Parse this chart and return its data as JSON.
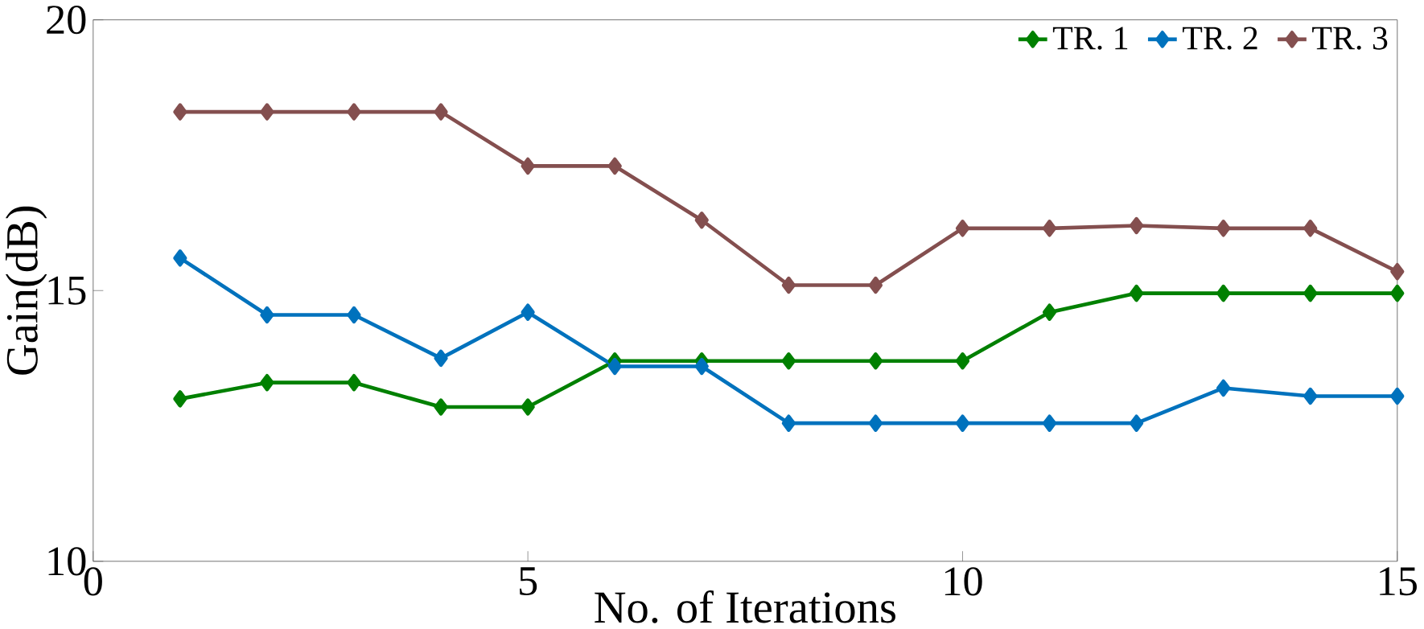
{
  "chart_data": {
    "type": "line",
    "xlabel": "No. of Iterations",
    "ylabel": "Gain(dB)",
    "x": [
      1,
      2,
      3,
      4,
      5,
      6,
      7,
      8,
      9,
      10,
      11,
      12,
      13,
      14,
      15
    ],
    "xlim": [
      0,
      15
    ],
    "ylim": [
      10,
      20
    ],
    "xticks": [
      0,
      5,
      10,
      15
    ],
    "yticks": [
      10,
      15,
      20
    ],
    "grid": false,
    "legend": "top right",
    "marker": "diamond",
    "line_style": "solid",
    "series": [
      {
        "name": "TR. 1",
        "color": "#008000",
        "values": [
          13.0,
          13.3,
          13.3,
          12.85,
          12.85,
          13.7,
          13.7,
          13.7,
          13.7,
          13.7,
          14.6,
          14.95,
          14.95,
          14.95,
          14.95
        ]
      },
      {
        "name": "TR. 2",
        "color": "#0072bd",
        "values": [
          15.6,
          14.55,
          14.55,
          13.75,
          14.6,
          13.6,
          13.6,
          12.55,
          12.55,
          12.55,
          12.55,
          12.55,
          13.2,
          13.05,
          13.05
        ]
      },
      {
        "name": "TR. 3",
        "color": "#844f4f",
        "values": [
          18.3,
          18.3,
          18.3,
          18.3,
          17.3,
          17.3,
          16.3,
          15.1,
          15.1,
          16.15,
          16.15,
          16.2,
          16.15,
          16.15,
          15.35
        ]
      }
    ]
  }
}
